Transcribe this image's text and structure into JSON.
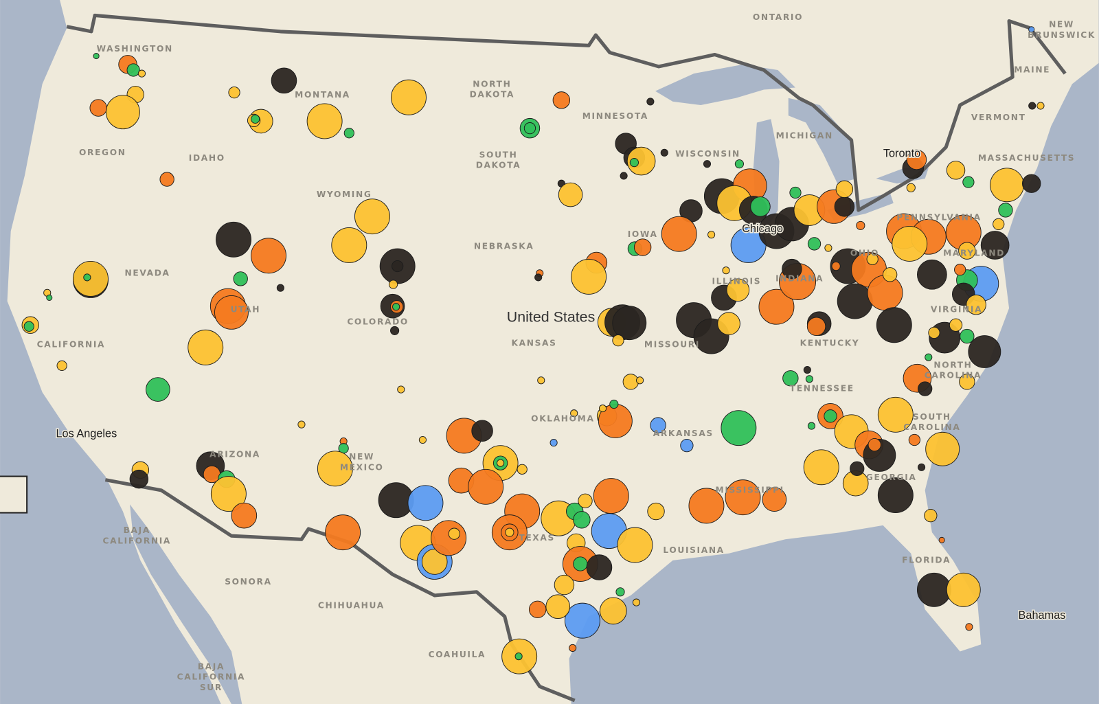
{
  "map": {
    "regions": [
      [
        "WASHINGTON"
      ],
      [
        "MONTANA"
      ],
      [
        "NORTH",
        "DAKOTA"
      ],
      [
        "MINNESOTA"
      ],
      [
        "OREGON"
      ],
      [
        "IDAHO"
      ],
      [
        "SOUTH",
        "DAKOTA"
      ],
      [
        "WISCONSIN"
      ],
      [
        "MICHIGAN"
      ],
      [
        "WYOMING"
      ],
      [
        "NEBRASKA"
      ],
      [
        "IOWA"
      ],
      [
        "NEVADA"
      ],
      [
        "UTAH"
      ],
      [
        "COLORADO"
      ],
      [
        "ILLINOIS"
      ],
      [
        "INDIANA"
      ],
      [
        "OHIO"
      ],
      [
        "PENNSYLVANIA"
      ],
      [
        "MARYLAND"
      ],
      [
        "VIRGINIA"
      ],
      [
        "KENTUCKY"
      ],
      [
        "KANSAS"
      ],
      [
        "MISSOURI"
      ],
      [
        "CALIFORNIA"
      ],
      [
        "TENNESSEE"
      ],
      [
        "NORTH",
        "CAROLINA"
      ],
      [
        "OKLAHOMA"
      ],
      [
        "ARKANSAS"
      ],
      [
        "SOUTH",
        "CAROLINA"
      ],
      [
        "ARIZONA"
      ],
      [
        "NEW",
        "MEXICO"
      ],
      [
        "MISSISSIPPI"
      ],
      [
        "GEORGIA"
      ],
      [
        "TEXAS"
      ],
      [
        "LOUISIANA"
      ],
      [
        "FLORIDA"
      ],
      [
        "ONTARIO"
      ],
      [
        "NEW",
        "BRUNSWICK"
      ],
      [
        "MAINE"
      ],
      [
        "VERMONT"
      ],
      [
        "MASSACHUSETTS"
      ],
      [
        "BAJA",
        "CALIFORNIA"
      ],
      [
        "SONORA"
      ],
      [
        "CHIHUAHUA"
      ],
      [
        "COAHUILA"
      ],
      [
        "BAJA",
        "CALIFORNIA",
        "SUR"
      ]
    ],
    "places": [
      "United States",
      "Chicago",
      "Toronto",
      "Los Angeles",
      "Bahamas"
    ]
  }
}
